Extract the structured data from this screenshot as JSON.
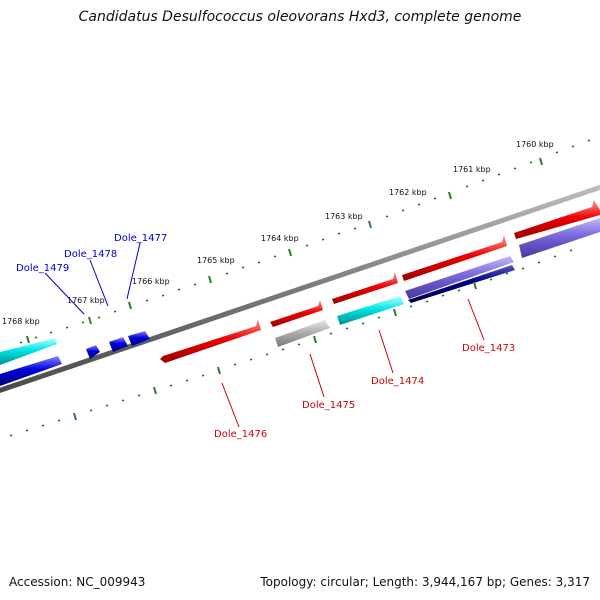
{
  "title": "Candidatus Desulfococcus oleovorans Hxd3, complete genome",
  "footer": {
    "accession": "Accession: NC_009943",
    "topology": "Topology: circular; Length: 3,944,167 bp; Genes: 3,317"
  },
  "scale_labels": [
    "1760 kbp",
    "1761 kbp",
    "1762 kbp",
    "1763 kbp",
    "1764 kbp",
    "1765 kbp",
    "1766 kbp",
    "1767 kbp",
    "1768 kbp"
  ],
  "gene_labels": {
    "blue_strand": [
      "Dole_1479",
      "Dole_1478",
      "Dole_1477"
    ],
    "red_strand": [
      "Dole_1476",
      "Dole_1475",
      "Dole_1474",
      "Dole_1473"
    ]
  },
  "colors": {
    "backbone": "#7a7a7a",
    "tick": "#2a7a2a",
    "cds_red": "#ee0000",
    "cds_cyan": "#00e5e5",
    "cds_blue": "#0000dd",
    "cds_gray": "#b0b0b0",
    "cds_lavender": "#7766dd",
    "cds_navy": "#000088",
    "label_red": "#cc0000",
    "label_blue": "#0000cc"
  }
}
